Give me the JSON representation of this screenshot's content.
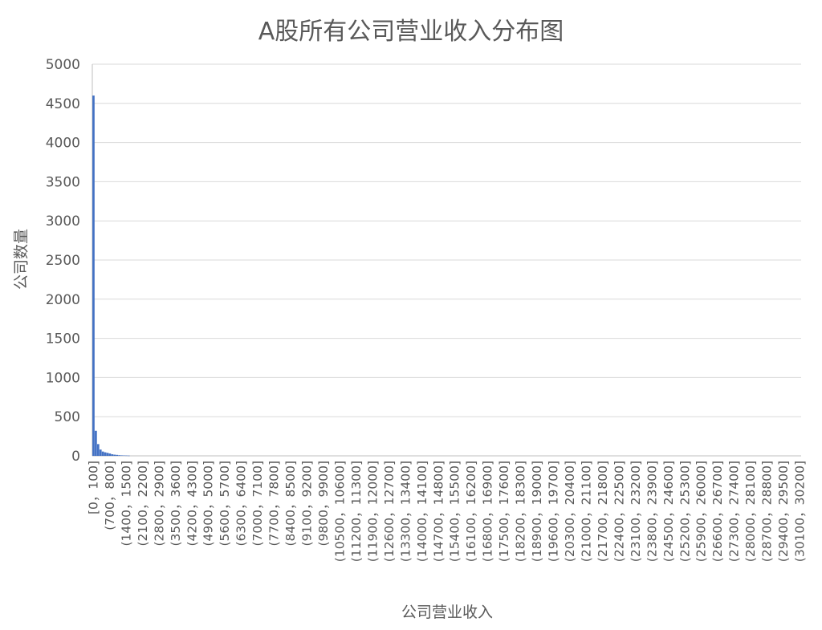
{
  "chart_data": {
    "type": "bar",
    "title": "A股所有公司营业收入分布图",
    "xlabel": "公司营业收入",
    "ylabel": "公司数量",
    "ylim": [
      0,
      5000
    ],
    "yticks": [
      0,
      500,
      1000,
      1500,
      2000,
      2500,
      3000,
      3500,
      4000,
      4500,
      5000
    ],
    "grid": true,
    "bin_width": 100,
    "bin_count": 302,
    "tick_every": 7,
    "tick_labels": [
      "[0，100]",
      "(700，800]",
      "(1400，1500]",
      "(2100，2200]",
      "(2800，2900]",
      "(3500，3600]",
      "(4200，4300]",
      "(4900，5000]",
      "(5600，5700]",
      "(6300，6400]",
      "(7000，7100]",
      "(7700，7800]",
      "(8400，8500]",
      "(9100，9200]",
      "(9800，9900]",
      "(10500，10600]",
      "(11200，11300]",
      "(11900，12000]",
      "(12600，12700]",
      "(13300，13400]",
      "(14000，14100]",
      "(14700，14800]",
      "(15400，15500]",
      "(16100，16200]",
      "(16800，16900]",
      "(17500，17600]",
      "(18200，18300]",
      "(18900，19000]",
      "(19600，19700]",
      "(20300，20400]",
      "(21000，21100]",
      "(21700，21800]",
      "(22400，22500]",
      "(23100，23200]",
      "(23800，23900]",
      "(24500，24600]",
      "(25200，25300]",
      "(25900，26000]",
      "(26600，26700]",
      "(27300，27400]",
      "(28000，28100]",
      "(28700，28800]",
      "(29400，29500]",
      "(30100，30200]"
    ],
    "values_head": [
      4600,
      320,
      150,
      80,
      55,
      45,
      38,
      30,
      20,
      15,
      12,
      8,
      6,
      5,
      4,
      3
    ],
    "bar_color": "#4472C4"
  }
}
